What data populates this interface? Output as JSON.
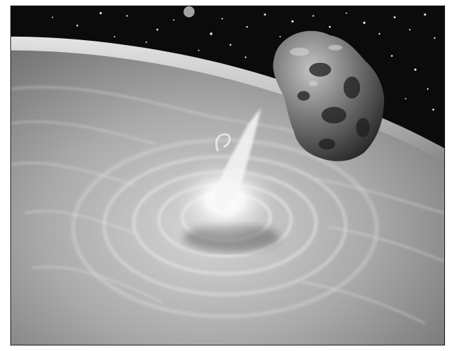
{
  "image": {
    "subject": "asteroid-impact-illustration",
    "palette": {
      "space": "#0b0b0b",
      "star": "#e8e8e8",
      "planet_light": "#dcdcdc",
      "planet_mid": "#9a9a9a",
      "planet_dark": "#5a5a5a",
      "impact_flash": "#ffffff",
      "asteroid_light": "#b8b8b8",
      "asteroid_dark": "#2a2a2a",
      "frame_border": "#1a1a1a"
    }
  }
}
